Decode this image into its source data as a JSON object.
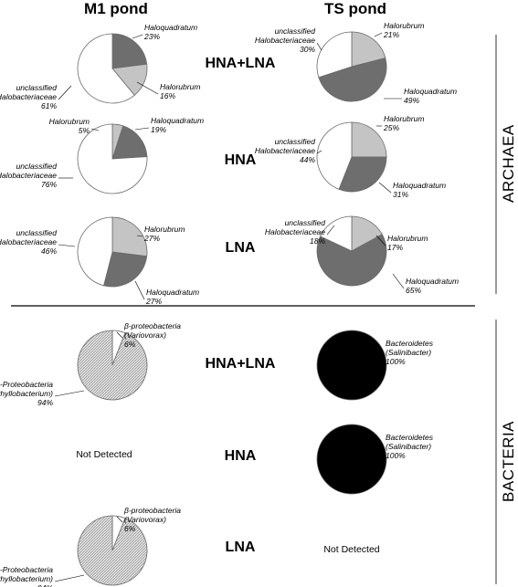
{
  "columns": [
    "M1 pond",
    "TS pond"
  ],
  "rows": [
    "HNA+LNA",
    "HNA",
    "LNA"
  ],
  "sections": [
    "ARCHAEA",
    "BACTERIA"
  ],
  "not_detected_text": "Not Detected",
  "colors": {
    "Haloquadratum": "#6e6e6e",
    "Halorubrum": "#c4c4c4",
    "unclassified Halobacteriaceae": "#ffffff",
    "β-proteobacteria": "#ffffff",
    "α-Proteobacteria": "#d2d2d2",
    "Bacteroidetes": "#000000"
  },
  "chart_data": [
    {
      "type": "pie",
      "section": "ARCHAEA",
      "pond": "M1 pond",
      "fraction": "HNA+LNA",
      "slices": [
        {
          "name": "Haloquadratum",
          "value": 23,
          "label": [
            "Haloquadratum",
            "23%"
          ]
        },
        {
          "name": "Halorubrum",
          "value": 16,
          "label": [
            "Halorubrum",
            "16%"
          ]
        },
        {
          "name": "unclassified Halobacteriaceae",
          "value": 61,
          "label": [
            "unclassified",
            "Halobacteriaceae",
            "61%"
          ]
        }
      ]
    },
    {
      "type": "pie",
      "section": "ARCHAEA",
      "pond": "TS pond",
      "fraction": "HNA+LNA",
      "slices": [
        {
          "name": "Halorubrum",
          "value": 21,
          "label": [
            "Halorubrum",
            "21%"
          ]
        },
        {
          "name": "Haloquadratum",
          "value": 49,
          "label": [
            "Haloquadratum",
            "49%"
          ]
        },
        {
          "name": "unclassified Halobacteriaceae",
          "value": 30,
          "label": [
            "unclassified",
            "Halobacteriaceae",
            "30%"
          ]
        }
      ]
    },
    {
      "type": "pie",
      "section": "ARCHAEA",
      "pond": "M1 pond",
      "fraction": "HNA",
      "slices": [
        {
          "name": "Halorubrum",
          "value": 5,
          "label": [
            "Halorubrum",
            "5%"
          ]
        },
        {
          "name": "Haloquadratum",
          "value": 19,
          "label": [
            "Haloquadratum",
            "19%"
          ]
        },
        {
          "name": "unclassified Halobacteriaceae",
          "value": 76,
          "label": [
            "unclassified",
            "Halobacteriaceae",
            "76%"
          ]
        }
      ]
    },
    {
      "type": "pie",
      "section": "ARCHAEA",
      "pond": "TS pond",
      "fraction": "HNA",
      "slices": [
        {
          "name": "Halorubrum",
          "value": 25,
          "label": [
            "Halorubrum",
            "25%"
          ]
        },
        {
          "name": "Haloquadratum",
          "value": 31,
          "label": [
            "Haloquadratum",
            "31%"
          ]
        },
        {
          "name": "unclassified Halobacteriaceae",
          "value": 44,
          "label": [
            "unclassified",
            "Halobacteriaceae",
            "44%"
          ]
        }
      ]
    },
    {
      "type": "pie",
      "section": "ARCHAEA",
      "pond": "M1 pond",
      "fraction": "LNA",
      "slices": [
        {
          "name": "Halorubrum",
          "value": 27,
          "label": [
            "Halorubrum",
            "27%"
          ]
        },
        {
          "name": "Haloquadratum",
          "value": 27,
          "label": [
            "Haloquadratum",
            "27%"
          ]
        },
        {
          "name": "unclassified Halobacteriaceae",
          "value": 46,
          "label": [
            "unclassified",
            "Halobacteriaceae",
            "46%"
          ]
        }
      ]
    },
    {
      "type": "pie",
      "section": "ARCHAEA",
      "pond": "TS pond",
      "fraction": "LNA",
      "slices": [
        {
          "name": "Halorubrum",
          "value": 17,
          "label": [
            "Halorubrum",
            "17%"
          ]
        },
        {
          "name": "Haloquadratum",
          "value": 65,
          "label": [
            "Haloquadratum",
            "65%"
          ]
        },
        {
          "name": "unclassified Halobacteriaceae",
          "value": 18,
          "label": [
            "unclassified",
            "Halobacteriaceae",
            "18%"
          ]
        }
      ]
    },
    {
      "type": "pie",
      "section": "BACTERIA",
      "pond": "M1 pond",
      "fraction": "HNA+LNA",
      "slices": [
        {
          "name": "β-proteobacteria",
          "value": 6,
          "label": [
            "β-proteobacteria",
            "(Variovorax)",
            "6%"
          ]
        },
        {
          "name": "α-Proteobacteria",
          "value": 94,
          "label": [
            "α-Proteobacteria",
            "(Phyllobacterium)",
            "94%"
          ]
        }
      ]
    },
    {
      "type": "pie",
      "section": "BACTERIA",
      "pond": "TS pond",
      "fraction": "HNA+LNA",
      "slices": [
        {
          "name": "Bacteroidetes",
          "value": 100,
          "label": [
            "Bacteroidetes",
            "(Salinibacter)",
            "100%"
          ]
        }
      ]
    },
    {
      "type": "pie",
      "section": "BACTERIA",
      "pond": "M1 pond",
      "fraction": "HNA",
      "not_detected": true
    },
    {
      "type": "pie",
      "section": "BACTERIA",
      "pond": "TS pond",
      "fraction": "HNA",
      "slices": [
        {
          "name": "Bacteroidetes",
          "value": 100,
          "label": [
            "Bacteroidetes",
            "(Salinibacter)",
            "100%"
          ]
        }
      ]
    },
    {
      "type": "pie",
      "section": "BACTERIA",
      "pond": "M1 pond",
      "fraction": "LNA",
      "slices": [
        {
          "name": "β-proteobacteria",
          "value": 6,
          "label": [
            "β-proteobacteria",
            "(Variovorax)",
            "6%"
          ]
        },
        {
          "name": "α-Proteobacteria",
          "value": 94,
          "label": [
            "α-Proteobacteria",
            "(Phyllobacterium)",
            "94%"
          ]
        }
      ]
    },
    {
      "type": "pie",
      "section": "BACTERIA",
      "pond": "TS pond",
      "fraction": "LNA",
      "not_detected": true
    }
  ]
}
